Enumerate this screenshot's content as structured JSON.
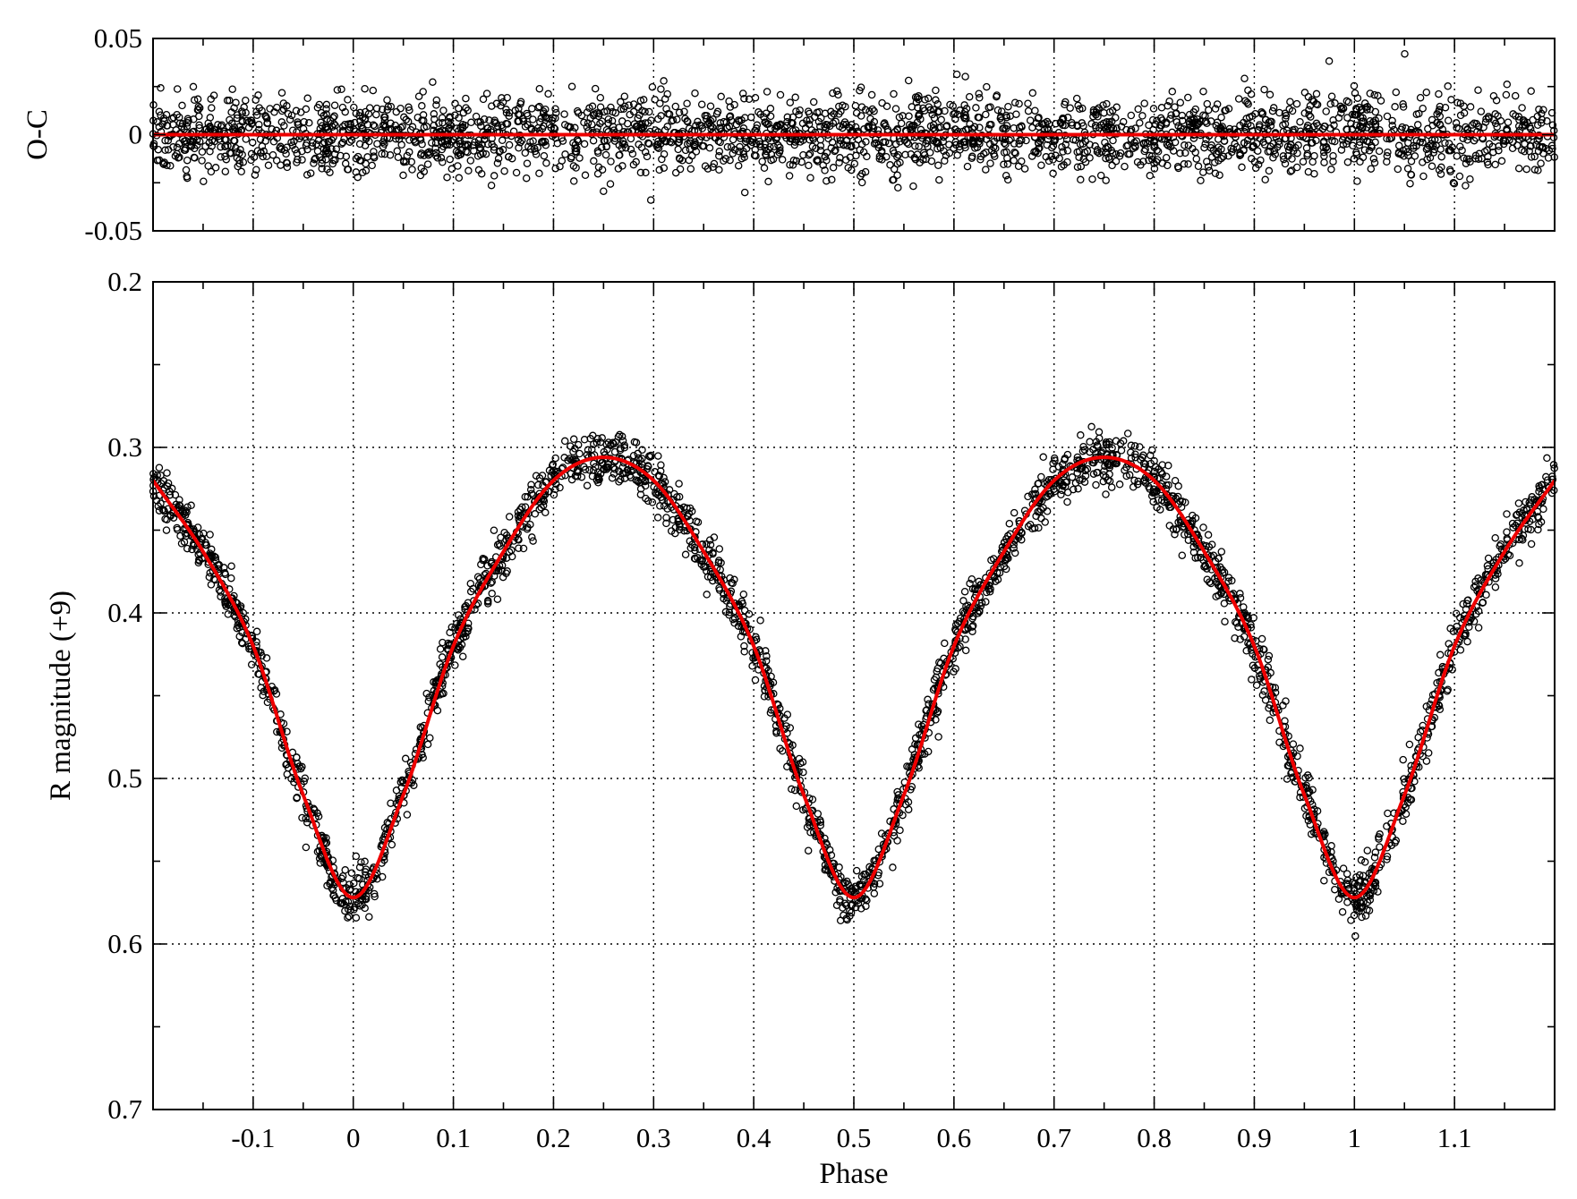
{
  "chart_data": [
    {
      "panel": "residuals",
      "type": "scatter",
      "ylabel": "O-C",
      "xlabel": "",
      "xlim": [
        -0.2,
        1.2
      ],
      "ylim": [
        -0.05,
        0.05
      ],
      "y_ticks": [
        -0.05,
        0,
        0.05
      ],
      "y_tick_labels": [
        "-0.05",
        "0",
        "0.05"
      ],
      "x_grid": [
        -0.1,
        0,
        0.1,
        0.2,
        0.3,
        0.4,
        0.5,
        0.6,
        0.7,
        0.8,
        0.9,
        1.0,
        1.1
      ],
      "grid": true,
      "residual_scatter_sd": 0.01,
      "series": [
        {
          "color": "#ee0000",
          "style": "line",
          "x": [
            -0.2,
            1.2
          ],
          "y": [
            0,
            0
          ]
        }
      ]
    },
    {
      "panel": "light-curve",
      "type": "scatter",
      "xlabel": "Phase",
      "ylabel": "R magnitude (+9)",
      "xlim": [
        -0.2,
        1.2
      ],
      "ylim": [
        0.7,
        0.2
      ],
      "y_inverted": true,
      "x_ticks": [
        -0.1,
        0,
        0.1,
        0.2,
        0.3,
        0.4,
        0.5,
        0.6,
        0.7,
        0.8,
        0.9,
        1.0,
        1.1
      ],
      "x_tick_labels": [
        "-0.1",
        "0",
        "0.1",
        "0.2",
        "0.3",
        "0.4",
        "0.5",
        "0.6",
        "0.7",
        "0.8",
        "0.9",
        "1",
        "1.1"
      ],
      "y_ticks": [
        0.2,
        0.3,
        0.4,
        0.5,
        0.6,
        0.7
      ],
      "y_tick_labels": [
        "0.2",
        "0.3",
        "0.4",
        "0.5",
        "0.6",
        "0.7"
      ],
      "grid": true,
      "observation_scatter_sd": 0.01,
      "series": [
        {
          "color": "#ee0000",
          "style": "line",
          "x": [
            -0.2,
            -0.15,
            -0.1,
            -0.05,
            0.0,
            0.05,
            0.1,
            0.15,
            0.2,
            0.25,
            0.3,
            0.35,
            0.4,
            0.45,
            0.5,
            0.55,
            0.6,
            0.65,
            0.7,
            0.75,
            0.8,
            0.85,
            0.9,
            0.95,
            1.0,
            1.05,
            1.1,
            1.15,
            1.2
          ],
          "y": [
            0.32,
            0.363,
            0.42,
            0.51,
            0.572,
            0.51,
            0.42,
            0.363,
            0.32,
            0.306,
            0.32,
            0.363,
            0.42,
            0.51,
            0.572,
            0.51,
            0.42,
            0.363,
            0.32,
            0.306,
            0.32,
            0.363,
            0.42,
            0.51,
            0.572,
            0.51,
            0.42,
            0.363,
            0.32
          ]
        }
      ]
    }
  ]
}
